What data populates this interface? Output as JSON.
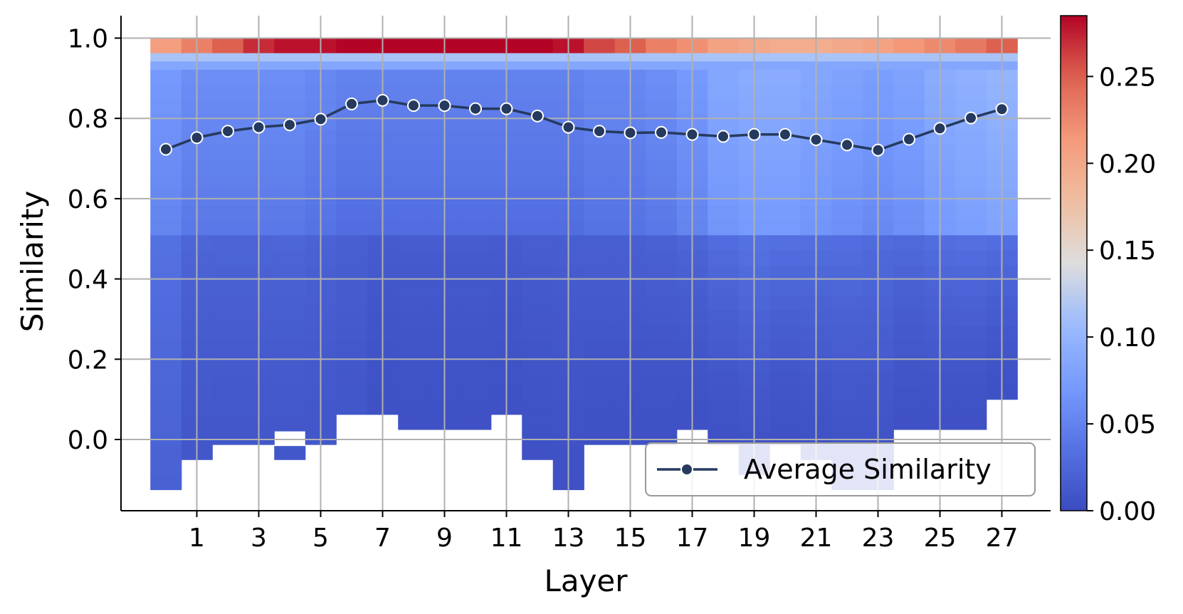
{
  "chart_data": {
    "type": "heatmap",
    "xlabel": "Layer",
    "ylabel": "Similarity",
    "xlim": [
      -1.5,
      28.5
    ],
    "ylim": [
      -0.18,
      1.06
    ],
    "x_ticks": [
      1,
      3,
      5,
      7,
      9,
      11,
      13,
      15,
      17,
      19,
      21,
      23,
      25,
      27
    ],
    "y_ticks": [
      0.0,
      0.2,
      0.4,
      0.6,
      0.8,
      1.0
    ],
    "y_tick_labels": [
      "0.0",
      "0.2",
      "0.4",
      "0.6",
      "0.8",
      "1.0"
    ],
    "grid": true,
    "colormap": "coolwarm",
    "colorbar": {
      "min": 0.0,
      "max": 0.285,
      "ticks": [
        0.0,
        0.05,
        0.1,
        0.15,
        0.2,
        0.25
      ],
      "tick_labels": [
        "0.00",
        "0.05",
        "0.10",
        "0.15",
        "0.20",
        "0.25"
      ]
    },
    "layers": [
      0,
      1,
      2,
      3,
      4,
      5,
      6,
      7,
      8,
      9,
      10,
      11,
      12,
      13,
      14,
      15,
      16,
      17,
      18,
      19,
      20,
      21,
      22,
      23,
      24,
      25,
      26,
      27
    ],
    "bin_width": 0.0375,
    "top_bin": [
      0.9625,
      1.0
    ],
    "layer_columns": [
      {
        "layer": 0,
        "min": -0.125,
        "top": 0.21,
        "mid": 0.05,
        "bottom": 0.02
      },
      {
        "layer": 1,
        "min": -0.05,
        "top": 0.23,
        "mid": 0.04,
        "bottom": 0.01
      },
      {
        "layer": 2,
        "min": -0.0125,
        "top": 0.25,
        "mid": 0.04,
        "bottom": 0.01
      },
      {
        "layer": 3,
        "min": -0.0125,
        "top": 0.27,
        "mid": 0.04,
        "bottom": 0.01
      },
      {
        "layer": 4,
        "min": -0.05,
        "top": 0.28,
        "mid": 0.04,
        "bottom": 0.01,
        "empty": [
          0.0,
          0.025
        ]
      },
      {
        "layer": 5,
        "min": -0.0125,
        "top": 0.28,
        "mid": 0.035,
        "bottom": 0.01
      },
      {
        "layer": 6,
        "min": 0.0625,
        "top": 0.285,
        "mid": 0.03,
        "bottom": 0.01
      },
      {
        "layer": 7,
        "min": 0.0625,
        "top": 0.285,
        "mid": 0.03,
        "bottom": 0.005
      },
      {
        "layer": 8,
        "min": 0.025,
        "top": 0.285,
        "mid": 0.03,
        "bottom": 0.005
      },
      {
        "layer": 9,
        "min": 0.025,
        "top": 0.285,
        "mid": 0.03,
        "bottom": 0.005
      },
      {
        "layer": 10,
        "min": 0.025,
        "top": 0.285,
        "mid": 0.03,
        "bottom": 0.005
      },
      {
        "layer": 11,
        "min": 0.0625,
        "top": 0.285,
        "mid": 0.03,
        "bottom": 0.005
      },
      {
        "layer": 12,
        "min": -0.05,
        "top": 0.285,
        "mid": 0.03,
        "bottom": 0.005
      },
      {
        "layer": 13,
        "min": -0.125,
        "top": 0.28,
        "mid": 0.03,
        "bottom": 0.005
      },
      {
        "layer": 14,
        "min": -0.0125,
        "top": 0.26,
        "mid": 0.035,
        "bottom": 0.005
      },
      {
        "layer": 15,
        "min": -0.0125,
        "top": 0.25,
        "mid": 0.035,
        "bottom": 0.005
      },
      {
        "layer": 16,
        "min": -0.0125,
        "top": 0.23,
        "mid": 0.04,
        "bottom": 0.005
      },
      {
        "layer": 17,
        "min": 0.025,
        "top": 0.22,
        "mid": 0.05,
        "bottom": 0.005
      },
      {
        "layer": 18,
        "min": -0.0125,
        "top": 0.205,
        "mid": 0.065,
        "bottom": 0.005
      },
      {
        "layer": 19,
        "min": -0.0875,
        "top": 0.2,
        "mid": 0.07,
        "bottom": 0.005
      },
      {
        "layer": 20,
        "min": -0.0125,
        "top": 0.195,
        "mid": 0.07,
        "bottom": 0.005
      },
      {
        "layer": 21,
        "min": -0.05,
        "top": 0.195,
        "mid": 0.065,
        "bottom": 0.005
      },
      {
        "layer": 22,
        "min": -0.125,
        "top": 0.2,
        "mid": 0.06,
        "bottom": 0.005
      },
      {
        "layer": 23,
        "min": -0.125,
        "top": 0.205,
        "mid": 0.055,
        "bottom": 0.005
      },
      {
        "layer": 24,
        "min": 0.025,
        "top": 0.215,
        "mid": 0.06,
        "bottom": 0.005
      },
      {
        "layer": 25,
        "min": 0.025,
        "top": 0.225,
        "mid": 0.07,
        "bottom": 0.005
      },
      {
        "layer": 26,
        "min": 0.025,
        "top": 0.235,
        "mid": 0.075,
        "bottom": 0.005
      },
      {
        "layer": 27,
        "min": 0.1,
        "top": 0.25,
        "mid": 0.08,
        "bottom": 0.005,
        "empty_bins": [
          0.0625
        ]
      }
    ],
    "series": [
      {
        "name": "Average Similarity",
        "color": "#253a5e",
        "x": [
          0,
          1,
          2,
          3,
          4,
          5,
          6,
          7,
          8,
          9,
          10,
          11,
          12,
          13,
          14,
          15,
          16,
          17,
          18,
          19,
          20,
          21,
          22,
          23,
          24,
          25,
          26,
          27
        ],
        "values": [
          0.723,
          0.752,
          0.768,
          0.778,
          0.784,
          0.798,
          0.836,
          0.845,
          0.832,
          0.832,
          0.824,
          0.824,
          0.806,
          0.778,
          0.768,
          0.764,
          0.765,
          0.76,
          0.755,
          0.76,
          0.76,
          0.747,
          0.734,
          0.721,
          0.748,
          0.775,
          0.801,
          0.823
        ]
      }
    ],
    "legend_position": "lower right"
  }
}
